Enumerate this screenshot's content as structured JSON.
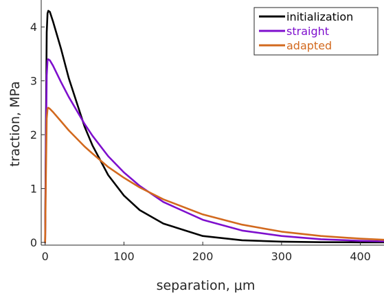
{
  "chart_data": {
    "type": "line",
    "xlabel": "separation, μm",
    "ylabel": "traction, MPa",
    "xlim": [
      -5,
      430
    ],
    "ylim": [
      -0.05,
      4.5
    ],
    "xticks": [
      0,
      100,
      200,
      300,
      400
    ],
    "yticks": [
      0,
      1,
      2,
      3,
      4
    ],
    "x_tick_labels": [
      "0",
      "100",
      "200",
      "300",
      "400"
    ],
    "y_tick_labels": [
      "0",
      "1",
      "2",
      "3",
      "4"
    ],
    "legend_position": "top-right",
    "grid": false,
    "box": "left-bottom-axes",
    "series": [
      {
        "name": "initialization",
        "color": "#000000",
        "x": [
          0,
          1,
          2,
          3,
          4,
          6,
          10,
          20,
          30,
          40,
          50,
          60,
          80,
          100,
          120,
          150,
          200,
          250,
          300,
          350,
          400,
          430
        ],
        "y": [
          0,
          2.2,
          3.9,
          4.25,
          4.3,
          4.28,
          4.1,
          3.6,
          3.05,
          2.6,
          2.15,
          1.8,
          1.25,
          0.87,
          0.6,
          0.35,
          0.12,
          0.04,
          0.015,
          0.005,
          0.002,
          0.001
        ]
      },
      {
        "name": "straight",
        "color": "#7e0fcd",
        "x": [
          0,
          1,
          2,
          3,
          4,
          6,
          10,
          20,
          30,
          40,
          50,
          60,
          80,
          100,
          120,
          150,
          200,
          250,
          300,
          350,
          400,
          430
        ],
        "y": [
          0,
          1.8,
          3.1,
          3.38,
          3.4,
          3.38,
          3.28,
          2.98,
          2.7,
          2.45,
          2.2,
          1.98,
          1.6,
          1.3,
          1.05,
          0.75,
          0.42,
          0.22,
          0.12,
          0.06,
          0.03,
          0.02
        ]
      },
      {
        "name": "adapted",
        "color": "#d2691e",
        "x": [
          0,
          1,
          2,
          3,
          4,
          6,
          10,
          20,
          30,
          40,
          50,
          60,
          80,
          100,
          120,
          150,
          200,
          250,
          300,
          350,
          400,
          430
        ],
        "y": [
          0,
          1.3,
          2.3,
          2.48,
          2.5,
          2.48,
          2.42,
          2.25,
          2.08,
          1.93,
          1.78,
          1.65,
          1.4,
          1.2,
          1.02,
          0.8,
          0.52,
          0.33,
          0.2,
          0.12,
          0.07,
          0.05
        ]
      }
    ]
  }
}
